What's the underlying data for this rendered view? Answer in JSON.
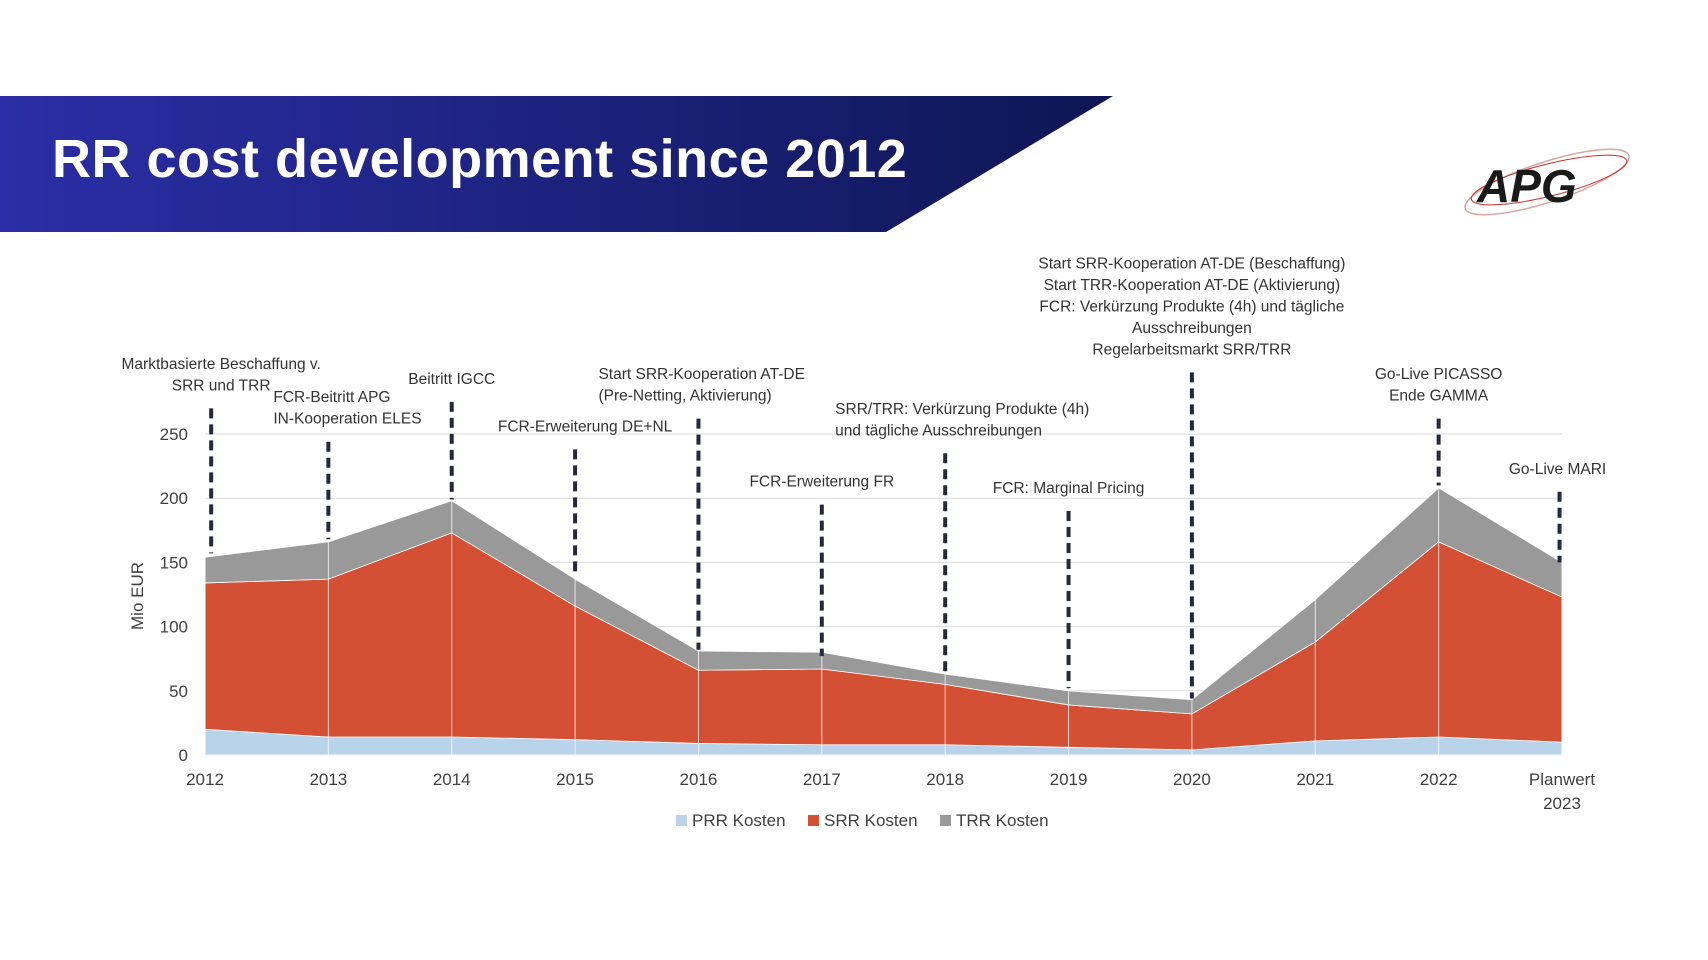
{
  "slide": {
    "title": "RR cost development since 2012",
    "logo_text": "APG"
  },
  "colors": {
    "banner_left": "#2b2ea6",
    "banner_right": "#0e1654",
    "prr": "#b8d3ea",
    "srr": "#d35035",
    "trr": "#999999",
    "marker": "#26293a"
  },
  "chart_data": {
    "type": "area",
    "stacked": true,
    "categories": [
      "2012",
      "2013",
      "2014",
      "2015",
      "2016",
      "2017",
      "2018",
      "2019",
      "2020",
      "2021",
      "2022",
      "Planwert 2023"
    ],
    "ylabel": "Mio EUR",
    "xlabel": "",
    "ylim": [
      0,
      250
    ],
    "yticks": [
      0,
      50,
      100,
      150,
      200,
      250
    ],
    "grid": true,
    "legend_position": "bottom",
    "series": [
      {
        "name": "PRR Kosten",
        "values": [
          20,
          14,
          14,
          12,
          9,
          8,
          8,
          6,
          4,
          11,
          14,
          10
        ]
      },
      {
        "name": "SRR Kosten",
        "values": [
          114,
          123,
          159,
          104,
          57,
          59,
          47,
          33,
          28,
          77,
          152,
          113
        ]
      },
      {
        "name": "TRR Kosten",
        "values": [
          20,
          29,
          25,
          21,
          15,
          13,
          8,
          11,
          11,
          33,
          42,
          27
        ]
      }
    ],
    "annotations": [
      {
        "x_index": 0,
        "x_offset": 0.05,
        "top": 270,
        "bottom": 157,
        "lines": [
          "Marktbasierte Beschaffung v.",
          "SRR und TRR"
        ]
      },
      {
        "x_index": 1,
        "x_offset": 0,
        "top": 244,
        "bottom": 168,
        "lines": [
          "FCR-Beitritt APG",
          "IN-Kooperation ELES"
        ]
      },
      {
        "x_index": 2,
        "x_offset": 0,
        "top": 275,
        "bottom": 199,
        "lines": [
          "Beitritt IGCC"
        ]
      },
      {
        "x_index": 3,
        "x_offset": 0,
        "top": 238,
        "bottom": 143,
        "lines": [
          "FCR-Erweiterung DE+NL"
        ]
      },
      {
        "x_index": 4,
        "x_offset": 0,
        "top": 262,
        "bottom": 82,
        "lines": [
          "Start SRR-Kooperation AT-DE",
          "(Pre-Netting, Aktivierung)"
        ]
      },
      {
        "x_index": 5,
        "x_offset": 0,
        "top": 195,
        "bottom": 77,
        "lines": [
          "FCR-Erweiterung FR"
        ]
      },
      {
        "x_index": 6,
        "x_offset": 0,
        "top": 235,
        "bottom": 62,
        "lines": [
          "SRR/TRR: Verkürzung Produkte (4h)",
          "und tägliche Ausschreibungen"
        ]
      },
      {
        "x_index": 7,
        "x_offset": 0,
        "top": 190,
        "bottom": 52,
        "lines": [
          "FCR: Marginal Pricing"
        ]
      },
      {
        "x_index": 8,
        "x_offset": 0,
        "top": 298,
        "bottom": 44,
        "lines": [
          "Start SRR-Kooperation AT-DE (Beschaffung)",
          "Start TRR-Kooperation AT-DE (Aktivierung)",
          "FCR: Verkürzung Produkte (4h) und tägliche",
          "Ausschreibungen",
          "Regelarbeitsmarkt SRR/TRR"
        ]
      },
      {
        "x_index": 10,
        "x_offset": 0,
        "top": 262,
        "bottom": 210,
        "lines": [
          "Go-Live PICASSO",
          "Ende GAMMA"
        ]
      },
      {
        "x_index": 11,
        "x_offset": -0.02,
        "top": 205,
        "bottom": 150,
        "lines": [
          "Go-Live MARI"
        ]
      }
    ]
  }
}
